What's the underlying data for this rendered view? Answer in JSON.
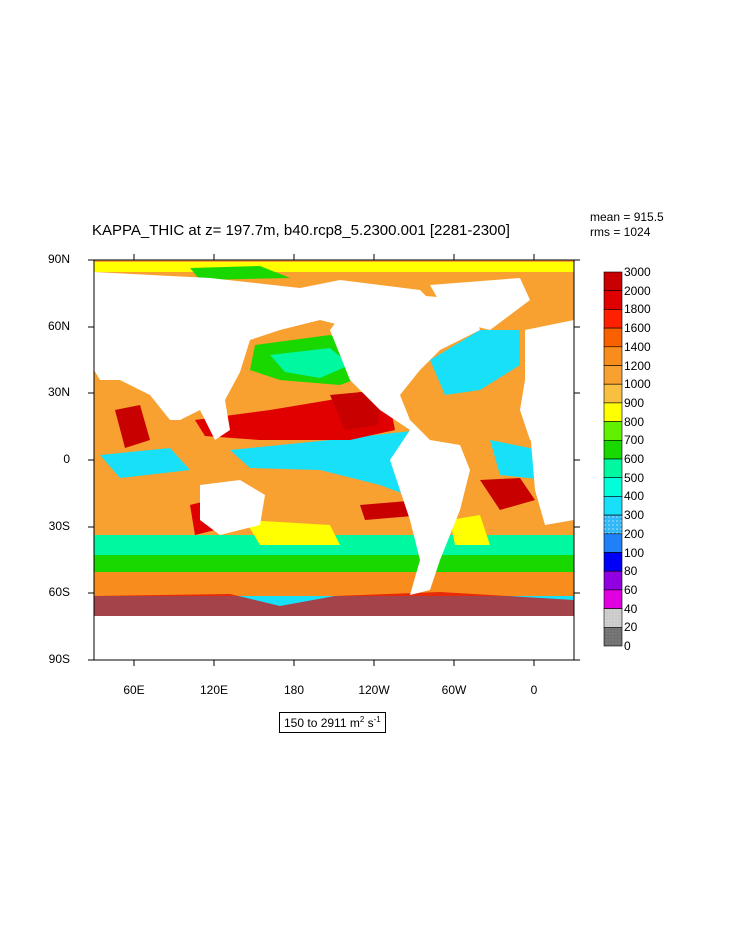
{
  "title": "KAPPA_THIC at z= 197.7m, b40.rcp8_5.2300.001 [2281-2300]",
  "stats": {
    "mean": "mean = 915.5",
    "rms": "rms = 1024"
  },
  "axes": {
    "y_ticks": [
      "90N",
      "60N",
      "30N",
      "0",
      "30S",
      "60S",
      "90S"
    ],
    "x_ticks": [
      "60E",
      "120E",
      "180",
      "120W",
      "60W",
      "0"
    ]
  },
  "units": {
    "prefix": "150 to 2911 m",
    "exp1": "2",
    "mid": " s",
    "exp2": "-1"
  },
  "colorbar": {
    "labels": [
      "3000",
      "2000",
      "1800",
      "1600",
      "1400",
      "1200",
      "1000",
      "900",
      "800",
      "700",
      "600",
      "500",
      "400",
      "300",
      "200",
      "100",
      "80",
      "60",
      "40",
      "20",
      "0"
    ],
    "colors": [
      "#c80000",
      "#e00000",
      "#ff2000",
      "#f86000",
      "#f88c1c",
      "#f8a030",
      "#f8c040",
      "#ffff00",
      "#60f000",
      "#18d800",
      "#00f8a0",
      "#00ffd8",
      "#18e0f8",
      "#30b8f8",
      "#2080f8",
      "#0000f8",
      "#9000e0",
      "#e000e0",
      "#c8c8c8",
      "#707070"
    ]
  },
  "map_colors": {
    "ocean_main": "#f8a030",
    "land": "#ffffff"
  }
}
